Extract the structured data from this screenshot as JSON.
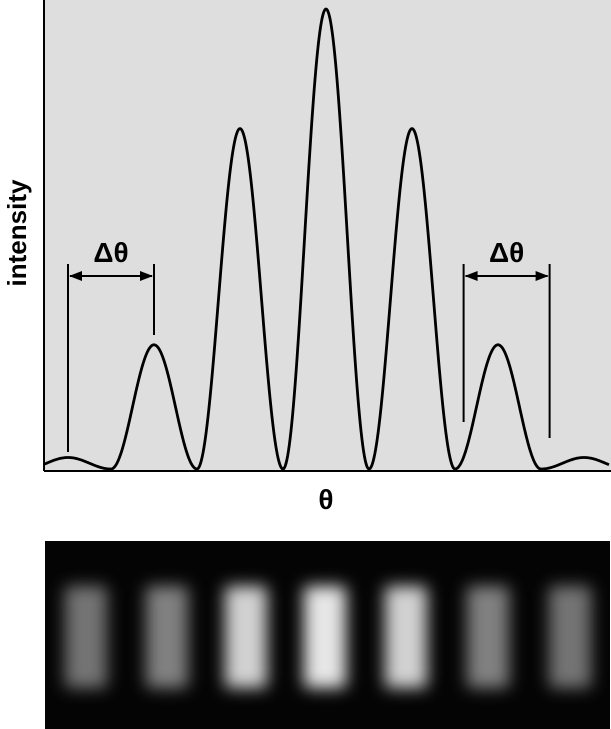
{
  "chart_data": {
    "type": "line",
    "title": "",
    "xlabel": "θ",
    "ylabel": "intensity",
    "xlim": [
      -3.5,
      3.5
    ],
    "ylim": [
      0,
      1.0
    ],
    "grid": false,
    "legend": "none",
    "plot_background": "#dedede",
    "line_color": "#000000",
    "series": [
      {
        "name": "intensity",
        "peaks": [
          {
            "theta": -3.0,
            "intensity": 0.025
          },
          {
            "theta": -2.0,
            "intensity": 0.27
          },
          {
            "theta": -1.0,
            "intensity": 0.74
          },
          {
            "theta": 0.0,
            "intensity": 1.0
          },
          {
            "theta": 1.0,
            "intensity": 0.74
          },
          {
            "theta": 2.0,
            "intensity": 0.27
          },
          {
            "theta": 3.0,
            "intensity": 0.025
          }
        ],
        "minima": [
          -3.5,
          -2.5,
          -1.5,
          -0.5,
          0.5,
          1.5,
          2.5,
          3.5
        ]
      }
    ],
    "annotations": [
      {
        "text": "Δθ",
        "from_theta": -3.0,
        "to_theta": -2.0,
        "side": "left"
      },
      {
        "text": "Δθ",
        "from_theta": 1.6,
        "to_theta": 2.6,
        "side": "right"
      }
    ],
    "fringe_image": {
      "description_label": "",
      "fringe_count": 7,
      "brightness": [
        0.45,
        0.5,
        0.82,
        0.9,
        0.82,
        0.5,
        0.45
      ]
    }
  }
}
